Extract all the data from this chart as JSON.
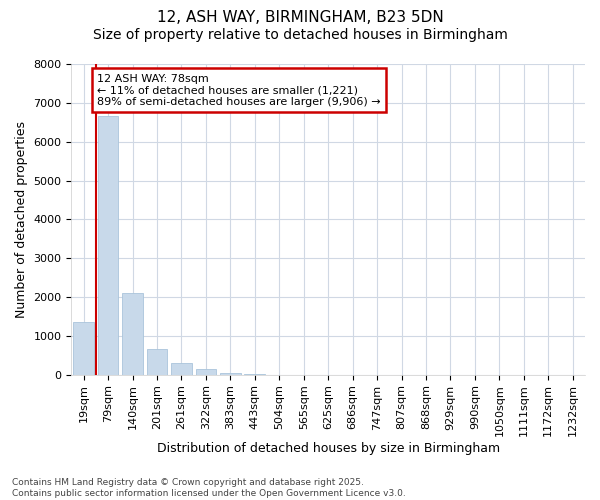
{
  "title_line1": "12, ASH WAY, BIRMINGHAM, B23 5DN",
  "title_line2": "Size of property relative to detached houses in Birmingham",
  "xlabel": "Distribution of detached houses by size in Birmingham",
  "ylabel": "Number of detached properties",
  "categories": [
    "19sqm",
    "79sqm",
    "140sqm",
    "201sqm",
    "261sqm",
    "322sqm",
    "383sqm",
    "443sqm",
    "504sqm",
    "565sqm",
    "625sqm",
    "686sqm",
    "747sqm",
    "807sqm",
    "868sqm",
    "929sqm",
    "990sqm",
    "1050sqm",
    "1111sqm",
    "1172sqm",
    "1232sqm"
  ],
  "values": [
    1350,
    6650,
    2100,
    650,
    310,
    150,
    50,
    30,
    5,
    0,
    5,
    0,
    0,
    0,
    0,
    0,
    0,
    0,
    0,
    0,
    0
  ],
  "bar_color": "#c8d9ea",
  "bar_edgecolor": "#aac4db",
  "vline_color": "#cc0000",
  "vline_x": 0.5,
  "annotation_text": "12 ASH WAY: 78sqm\n← 11% of detached houses are smaller (1,221)\n89% of semi-detached houses are larger (9,906) →",
  "annotation_box_facecolor": "#ffffff",
  "annotation_box_edgecolor": "#cc0000",
  "ylim": [
    0,
    8000
  ],
  "yticks": [
    0,
    1000,
    2000,
    3000,
    4000,
    5000,
    6000,
    7000,
    8000
  ],
  "background_color": "#ffffff",
  "plot_bg_color": "#ffffff",
  "grid_color": "#d0d8e4",
  "footnote": "Contains HM Land Registry data © Crown copyright and database right 2025.\nContains public sector information licensed under the Open Government Licence v3.0.",
  "title_fontsize": 11,
  "subtitle_fontsize": 10,
  "label_fontsize": 9,
  "tick_fontsize": 8,
  "annot_fontsize": 8,
  "footnote_fontsize": 6.5
}
